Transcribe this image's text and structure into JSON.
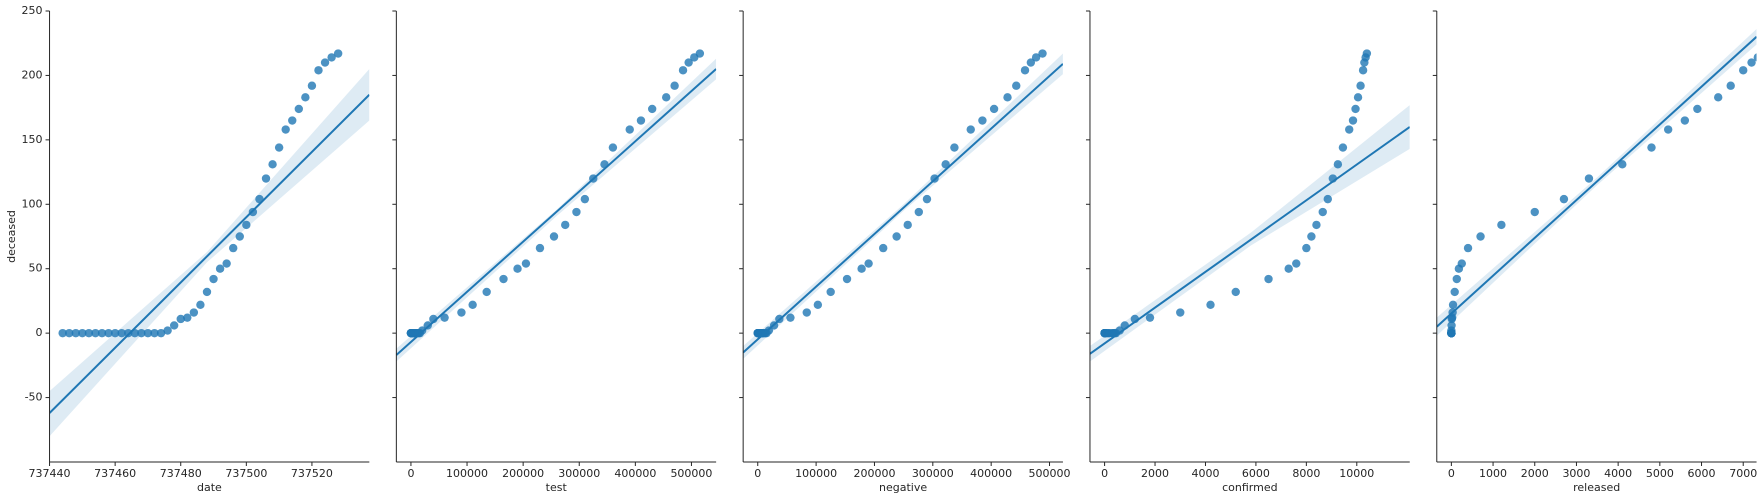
{
  "chart_data": [
    {
      "type": "scatter",
      "xlabel": "date",
      "ylabel": "deceased",
      "color": "#1f77b4",
      "x": [
        737444,
        737446,
        737448,
        737450,
        737452,
        737454,
        737456,
        737458,
        737460,
        737462,
        737464,
        737466,
        737468,
        737470,
        737472,
        737474,
        737476,
        737478,
        737480,
        737482,
        737484,
        737486,
        737488,
        737490,
        737492,
        737494,
        737496,
        737498,
        737500,
        737502,
        737504,
        737506,
        737508,
        737510,
        737512,
        737514,
        737516,
        737518,
        737520,
        737522,
        737524,
        737526,
        737528
      ],
      "y": [
        0,
        0,
        0,
        0,
        0,
        0,
        0,
        0,
        0,
        0,
        0,
        0,
        0,
        0,
        0,
        0,
        2,
        6,
        11,
        12,
        16,
        22,
        32,
        42,
        50,
        54,
        66,
        75,
        84,
        94,
        104,
        120,
        131,
        144,
        158,
        165,
        174,
        183,
        192,
        204,
        210,
        214,
        217
      ],
      "fit_line": {
        "x": [
          737440,
          737537.5
        ],
        "y": [
          -62,
          185
        ]
      },
      "ci_band": {
        "x": [
          737440,
          737488,
          737537.5
        ],
        "lower": [
          -80,
          55,
          165
        ],
        "upper": [
          -45,
          63,
          205
        ]
      },
      "xlim": [
        737440,
        737537.5
      ],
      "xticks": [
        737440,
        737460,
        737480,
        737500,
        737520
      ],
      "ylim": [
        -100,
        250
      ],
      "yticks": [
        -50,
        0,
        50,
        100,
        150,
        200,
        250
      ]
    },
    {
      "type": "scatter",
      "xlabel": "test",
      "color": "#1f77b4",
      "x": [
        0,
        0,
        0,
        0,
        1000,
        2000,
        3000,
        4000,
        5000,
        6000,
        8000,
        9000,
        10000,
        12000,
        14000,
        16000,
        20000,
        30000,
        40000,
        60000,
        90000,
        110000,
        135000,
        165000,
        190000,
        205000,
        230000,
        255000,
        275000,
        295000,
        310000,
        325000,
        345000,
        360000,
        390000,
        410000,
        430000,
        455000,
        470000,
        485000,
        495000,
        505000,
        515000
      ],
      "y": [
        0,
        0,
        0,
        0,
        0,
        0,
        0,
        0,
        0,
        0,
        0,
        0,
        0,
        0,
        0,
        0,
        2,
        6,
        11,
        12,
        16,
        22,
        32,
        42,
        50,
        54,
        66,
        75,
        84,
        94,
        104,
        120,
        131,
        144,
        158,
        165,
        174,
        183,
        192,
        204,
        210,
        214,
        217
      ],
      "fit_line": {
        "x": [
          -26000,
          544000
        ],
        "y": [
          -17,
          205
        ]
      },
      "ci_band": {
        "x": [
          -26000,
          260000,
          544000
        ],
        "lower": [
          -22,
          91,
          197
        ],
        "upper": [
          -12,
          96,
          213
        ]
      },
      "xlim": [
        -26000,
        544000
      ],
      "xticks": [
        0,
        100000,
        200000,
        300000,
        400000,
        500000
      ],
      "ylim": [
        -100,
        250
      ],
      "yticks": [
        -50,
        0,
        50,
        100,
        150,
        200,
        250
      ]
    },
    {
      "type": "scatter",
      "xlabel": "negative",
      "color": "#1f77b4",
      "x": [
        0,
        0,
        0,
        0,
        1000,
        2000,
        3000,
        4000,
        5000,
        6000,
        7000,
        8000,
        9000,
        11000,
        13000,
        15000,
        19000,
        28000,
        37000,
        56000,
        84000,
        103000,
        125000,
        153000,
        178000,
        190000,
        215000,
        238000,
        257000,
        276000,
        290000,
        303000,
        322000,
        337000,
        365000,
        385000,
        405000,
        428000,
        443000,
        458000,
        468000,
        477000,
        488000
      ],
      "y": [
        0,
        0,
        0,
        0,
        0,
        0,
        0,
        0,
        0,
        0,
        0,
        0,
        0,
        0,
        0,
        0,
        2,
        6,
        11,
        12,
        16,
        22,
        32,
        42,
        50,
        54,
        66,
        75,
        84,
        94,
        104,
        120,
        131,
        144,
        158,
        165,
        174,
        183,
        192,
        204,
        210,
        214,
        217
      ],
      "fit_line": {
        "x": [
          -25000,
          523000
        ],
        "y": [
          -15,
          209
        ]
      },
      "ci_band": {
        "x": [
          -25000,
          250000,
          523000
        ],
        "lower": [
          -20,
          95,
          201
        ],
        "upper": [
          -10,
          100,
          217
        ]
      },
      "xlim": [
        -25000,
        523000
      ],
      "xticks": [
        0,
        100000,
        200000,
        300000,
        400000,
        500000
      ],
      "ylim": [
        -100,
        250
      ],
      "yticks": [
        -50,
        0,
        50,
        100,
        150,
        200,
        250
      ]
    },
    {
      "type": "scatter",
      "xlabel": "confirmed",
      "color": "#1f77b4",
      "x": [
        0,
        0,
        0,
        0,
        0,
        10,
        20,
        30,
        50,
        100,
        150,
        200,
        300,
        350,
        400,
        450,
        600,
        800,
        1200,
        1800,
        3000,
        4200,
        5200,
        6500,
        7300,
        7600,
        8000,
        8200,
        8400,
        8650,
        8850,
        9050,
        9250,
        9450,
        9700,
        9850,
        9950,
        10050,
        10150,
        10250,
        10300,
        10350,
        10400
      ],
      "y": [
        0,
        0,
        0,
        0,
        0,
        0,
        0,
        0,
        0,
        0,
        0,
        0,
        0,
        0,
        0,
        0,
        2,
        6,
        11,
        12,
        16,
        22,
        32,
        42,
        50,
        54,
        66,
        75,
        84,
        94,
        104,
        120,
        131,
        144,
        158,
        165,
        174,
        183,
        192,
        204,
        210,
        214,
        217
      ],
      "fit_line": {
        "x": [
          -580,
          12100
        ],
        "y": [
          -16,
          160
        ]
      },
      "ci_band": {
        "x": [
          -580,
          5800,
          12100
        ],
        "lower": [
          -22,
          68,
          143
        ],
        "upper": [
          -10,
          78,
          177
        ]
      },
      "xlim": [
        -580,
        12100
      ],
      "xticks": [
        0,
        2000,
        4000,
        6000,
        8000,
        10000
      ],
      "ylim": [
        -100,
        250
      ],
      "yticks": [
        -50,
        0,
        50,
        100,
        150,
        200,
        250
      ]
    },
    {
      "type": "scatter",
      "xlabel": "released",
      "color": "#1f77b4",
      "x": [
        0,
        0,
        0,
        0,
        0,
        0,
        0,
        0,
        0,
        0,
        0,
        0,
        0,
        0,
        0,
        0,
        0,
        5,
        10,
        20,
        30,
        40,
        80,
        130,
        180,
        250,
        400,
        700,
        1200,
        2000,
        2700,
        3300,
        4100,
        4800,
        5200,
        5600,
        5900,
        6400,
        6700,
        7000,
        7200,
        7350,
        7450
      ],
      "y": [
        0,
        0,
        0,
        0,
        0,
        0,
        0,
        0,
        0,
        0,
        0,
        0,
        0,
        0,
        0,
        0,
        2,
        6,
        11,
        12,
        16,
        22,
        32,
        42,
        50,
        54,
        66,
        75,
        84,
        94,
        104,
        120,
        131,
        144,
        158,
        165,
        174,
        183,
        192,
        204,
        210,
        214,
        217
      ],
      "fit_line": {
        "x": [
          -350,
          7320
        ],
        "y": [
          5,
          230
        ]
      },
      "ci_band": {
        "x": [
          -350,
          3500,
          7320
        ],
        "lower": [
          -2,
          115,
          224
        ],
        "upper": [
          12,
          121,
          236
        ]
      },
      "xlim": [
        -350,
        7320
      ],
      "xticks": [
        0,
        1000,
        2000,
        3000,
        4000,
        5000,
        6000,
        7000
      ],
      "ylim": [
        -100,
        250
      ],
      "yticks": [
        -50,
        0,
        50,
        100,
        150,
        200,
        250
      ]
    }
  ]
}
